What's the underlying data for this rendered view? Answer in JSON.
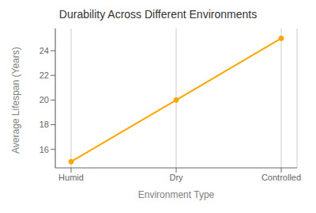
{
  "chart_data": {
    "type": "line",
    "title": "Durability Across Different Environments",
    "xlabel": "Environment Type",
    "ylabel": "Average Lifespan (Years)",
    "categories": [
      "Humid",
      "Dry",
      "Controlled"
    ],
    "values": [
      15,
      20,
      25
    ],
    "color": "#FFA500",
    "marker": "circle",
    "ylim": [
      14.5,
      25.8
    ],
    "yticks": [
      16,
      18,
      20,
      22,
      24
    ],
    "grid": "x"
  }
}
